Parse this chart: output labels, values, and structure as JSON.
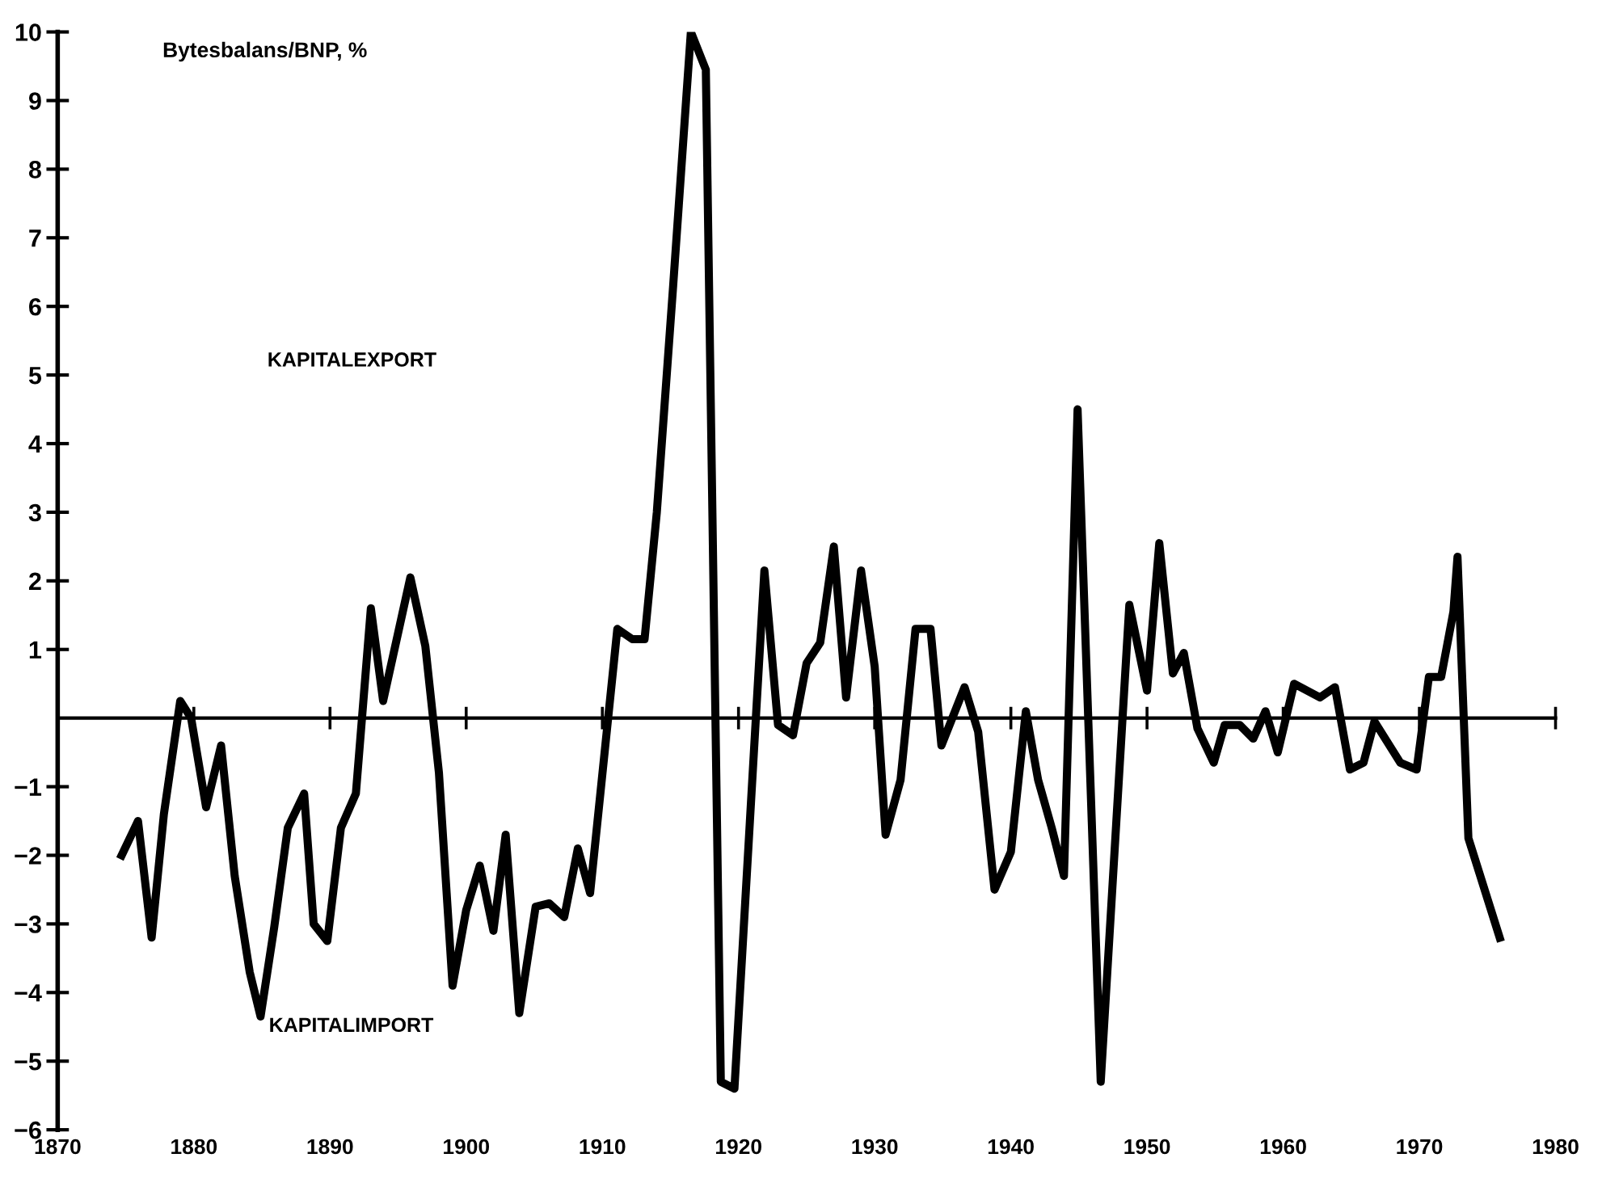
{
  "chart_data": {
    "type": "line",
    "ylabel": "Bytesbalans/BNP, %",
    "annotations": [
      "KAPITALEXPORT",
      "KAPITALIMPORT"
    ],
    "x": [
      1874.7,
      1875.9,
      1876.9,
      1877.8,
      1879.0,
      1879.8,
      1880.9,
      1882.0,
      1883.0,
      1884.1,
      1884.9,
      1885.9,
      1886.9,
      1888.1,
      1888.8,
      1889.8,
      1890.8,
      1891.9,
      1893.0,
      1893.9,
      1895.9,
      1897.0,
      1898.0,
      1899.0,
      1900.0,
      1901.0,
      1902.0,
      1902.9,
      1903.9,
      1905.1,
      1906.1,
      1907.2,
      1908.2,
      1909.1,
      1911.1,
      1912.2,
      1913.1,
      1914.0,
      1915.2,
      1916.5,
      1917.6,
      1918.7,
      1919.7,
      1921.9,
      1922.9,
      1924.0,
      1925.0,
      1926.0,
      1927.0,
      1927.9,
      1929.0,
      1930.0,
      1930.8,
      1931.9,
      1933.0,
      1934.1,
      1934.9,
      1936.6,
      1937.6,
      1938.8,
      1940.0,
      1941.1,
      1942.0,
      1943.0,
      1943.9,
      1944.9,
      1946.6,
      1948.7,
      1950.0,
      1950.9,
      1951.9,
      1952.7,
      1953.7,
      1954.9,
      1955.7,
      1956.8,
      1957.8,
      1958.7,
      1959.6,
      1960.8,
      1962.7,
      1963.8,
      1964.9,
      1965.9,
      1966.7,
      1968.6,
      1969.8,
      1970.7,
      1971.6,
      1972.5,
      1972.8,
      1973.6,
      1975.9
    ],
    "series": [
      {
        "color": "#000000",
        "values": [
          -2.0,
          -1.5,
          -3.2,
          -1.4,
          0.25,
          0.0,
          -1.3,
          -0.4,
          -2.3,
          -3.7,
          -4.35,
          -3.05,
          -1.6,
          -1.1,
          -3.0,
          -3.25,
          -1.6,
          -1.1,
          1.6,
          0.25,
          2.05,
          1.05,
          -0.8,
          -3.9,
          -2.8,
          -2.15,
          -3.1,
          -1.7,
          -4.3,
          -2.75,
          -2.7,
          -2.9,
          -1.9,
          -2.55,
          1.3,
          1.15,
          1.15,
          3.0,
          6.3,
          10.0,
          9.45,
          -5.3,
          -5.4,
          2.15,
          -0.1,
          -0.25,
          0.8,
          1.1,
          2.5,
          0.3,
          2.15,
          0.75,
          -1.7,
          -0.9,
          1.3,
          1.3,
          -0.4,
          0.45,
          -0.2,
          -2.5,
          -1.95,
          0.1,
          -0.9,
          -1.6,
          -2.3,
          4.5,
          -5.3,
          1.65,
          0.4,
          2.55,
          0.65,
          0.95,
          -0.15,
          -0.65,
          -0.1,
          -0.1,
          -0.3,
          0.1,
          -0.5,
          0.5,
          0.3,
          0.45,
          -0.75,
          -0.65,
          -0.05,
          -0.65,
          -0.75,
          0.6,
          0.6,
          1.55,
          2.35,
          -1.75,
          -3.2
        ]
      }
    ],
    "xlim": [
      1870,
      1980
    ],
    "ylim": [
      -6,
      10
    ],
    "xticks": [
      1870,
      1880,
      1890,
      1900,
      1910,
      1920,
      1930,
      1940,
      1950,
      1960,
      1970,
      1980
    ],
    "yticks": [
      -6,
      -5,
      -4,
      -3,
      -2,
      -1,
      1,
      2,
      3,
      4,
      5,
      6,
      7,
      8,
      9,
      10
    ],
    "marker": "none",
    "line_style": "solid",
    "grid": false,
    "legend": false
  }
}
